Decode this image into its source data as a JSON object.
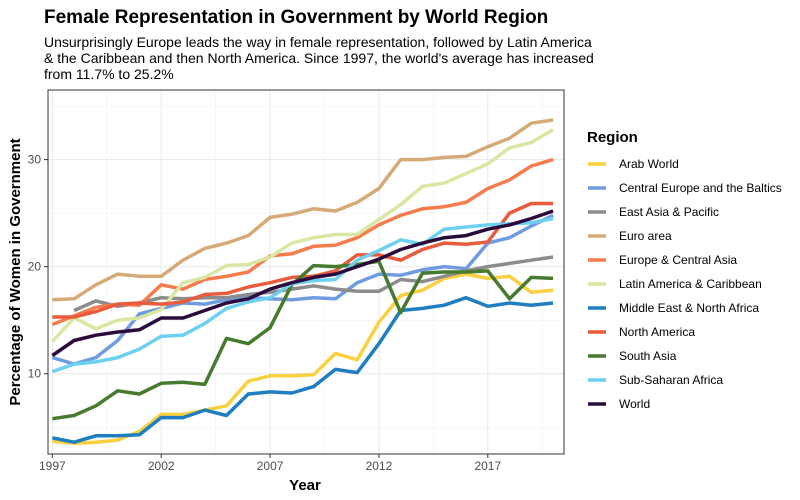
{
  "chart_data": {
    "type": "line",
    "title": "Female Representation in Government by World Region",
    "subtitle_lines": [
      "Unsurprisingly Europe leads the way in female representation, followed by Latin America",
      "& the Caribbean and then North America. Since 1997, the world's average has increased",
      "from 11.7% to 25.2%"
    ],
    "xlabel": "Year",
    "ylabel": "Percentage of Women in Government",
    "xlim": [
      1996.8,
      2020.5
    ],
    "ylim": [
      2.5,
      36.5
    ],
    "x_ticks": [
      1997,
      2002,
      2007,
      2012,
      2017
    ],
    "y_ticks": [
      10,
      20,
      30
    ],
    "grid": true,
    "legend": {
      "title": "Region",
      "position": "right"
    },
    "x": [
      1997,
      1998,
      1999,
      2000,
      2001,
      2002,
      2003,
      2004,
      2005,
      2006,
      2007,
      2008,
      2009,
      2010,
      2011,
      2012,
      2013,
      2014,
      2015,
      2016,
      2017,
      2018,
      2019,
      2020
    ],
    "series": [
      {
        "name": "Arab World",
        "color": "#F9D03F",
        "values": [
          3.7,
          3.5,
          3.6,
          3.8,
          4.6,
          6.2,
          6.2,
          6.6,
          7.0,
          9.3,
          9.8,
          9.8,
          9.9,
          11.9,
          11.3,
          14.8,
          17.3,
          17.8,
          18.9,
          19.3,
          18.9,
          19.1,
          17.6,
          17.8
        ]
      },
      {
        "name": "Central Europe and the Baltics",
        "color": "#6F9BE0",
        "values": [
          11.5,
          10.9,
          11.5,
          13.1,
          15.6,
          16.1,
          16.6,
          16.5,
          16.9,
          17.1,
          17.0,
          16.9,
          17.1,
          17.0,
          18.5,
          19.3,
          19.2,
          19.7,
          20.0,
          19.8,
          22.2,
          22.7,
          23.8,
          24.8
        ]
      },
      {
        "name": "East Asia & Pacific",
        "color": "#8C8C8C",
        "values": [
          null,
          15.9,
          16.8,
          16.3,
          16.6,
          17.1,
          17.0,
          17.1,
          17.1,
          17.4,
          17.6,
          17.9,
          18.2,
          17.9,
          17.7,
          17.7,
          18.8,
          18.6,
          19.1,
          19.6,
          20.0,
          20.3,
          20.6,
          20.9
        ]
      },
      {
        "name": "Euro area",
        "color": "#D6AA77",
        "values": [
          16.9,
          17.0,
          18.3,
          19.3,
          19.1,
          19.1,
          20.6,
          21.7,
          22.2,
          22.9,
          24.6,
          24.9,
          25.4,
          25.2,
          26.0,
          27.3,
          30.0,
          30.0,
          30.2,
          30.3,
          31.2,
          32.0,
          33.4,
          33.7
        ]
      },
      {
        "name": "Europe & Central Asia",
        "color": "#F47C4D",
        "values": [
          14.6,
          15.4,
          16.2,
          16.5,
          16.4,
          18.3,
          17.9,
          18.8,
          19.1,
          19.5,
          21.0,
          21.2,
          21.9,
          22.0,
          22.7,
          23.9,
          24.8,
          25.4,
          25.6,
          26.0,
          27.3,
          28.1,
          29.4,
          30.0
        ]
      },
      {
        "name": "Latin America & Caribbean",
        "color": "#D8E7A1",
        "values": [
          13.0,
          15.2,
          14.2,
          15.0,
          15.2,
          16.0,
          18.5,
          19.0,
          20.1,
          20.2,
          20.9,
          22.2,
          22.7,
          23.0,
          23.0,
          24.4,
          25.8,
          27.5,
          27.8,
          28.7,
          29.6,
          31.1,
          31.6,
          32.8
        ]
      },
      {
        "name": "Middle East & North Africa",
        "color": "#1F7EC1",
        "values": [
          4.0,
          3.6,
          4.2,
          4.2,
          4.3,
          5.9,
          5.9,
          6.6,
          6.1,
          8.1,
          8.3,
          8.2,
          8.8,
          10.4,
          10.1,
          12.8,
          15.9,
          16.1,
          16.4,
          17.1,
          16.3,
          16.6,
          16.4,
          16.6
        ]
      },
      {
        "name": "North America",
        "color": "#E85B3C",
        "values": [
          15.3,
          15.3,
          15.8,
          16.5,
          16.6,
          16.5,
          16.7,
          17.4,
          17.5,
          18.1,
          18.5,
          19.0,
          19.1,
          19.6,
          21.1,
          21.1,
          20.6,
          21.6,
          22.2,
          22.1,
          22.3,
          25.0,
          25.9,
          25.9
        ]
      },
      {
        "name": "South Asia",
        "color": "#467A2F",
        "values": [
          5.8,
          6.1,
          7.0,
          8.4,
          8.1,
          9.1,
          9.2,
          9.0,
          13.3,
          12.8,
          14.3,
          18.3,
          20.1,
          20.0,
          20.2,
          20.5,
          15.7,
          19.4,
          19.5,
          19.5,
          19.6,
          17.0,
          19.0,
          18.9
        ]
      },
      {
        "name": "Sub-Saharan Africa",
        "color": "#6DD0F1",
        "values": [
          10.2,
          10.9,
          11.1,
          11.5,
          12.3,
          13.5,
          13.6,
          14.7,
          16.1,
          16.7,
          17.1,
          18.4,
          18.7,
          18.8,
          20.6,
          21.5,
          22.5,
          22.1,
          23.5,
          23.7,
          23.9,
          24.0,
          24.1,
          24.5
        ]
      },
      {
        "name": "World",
        "color": "#2B0A3D",
        "values": [
          11.7,
          13.1,
          13.6,
          13.9,
          14.1,
          15.2,
          15.2,
          15.9,
          16.6,
          17.0,
          17.9,
          18.5,
          19.0,
          19.3,
          20.0,
          20.7,
          21.6,
          22.2,
          22.7,
          22.9,
          23.5,
          23.9,
          24.5,
          25.2
        ]
      }
    ]
  }
}
